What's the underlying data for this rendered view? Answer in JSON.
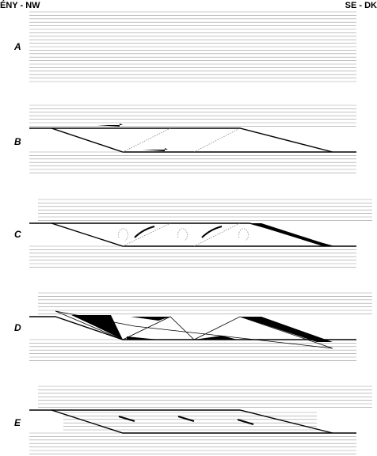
{
  "header": {
    "left": "ÉNY - NW",
    "right": "SE - DK"
  },
  "panels": [
    {
      "label": "A"
    },
    {
      "label": "B"
    },
    {
      "label": "C"
    },
    {
      "label": "D"
    },
    {
      "label": "E"
    }
  ]
}
